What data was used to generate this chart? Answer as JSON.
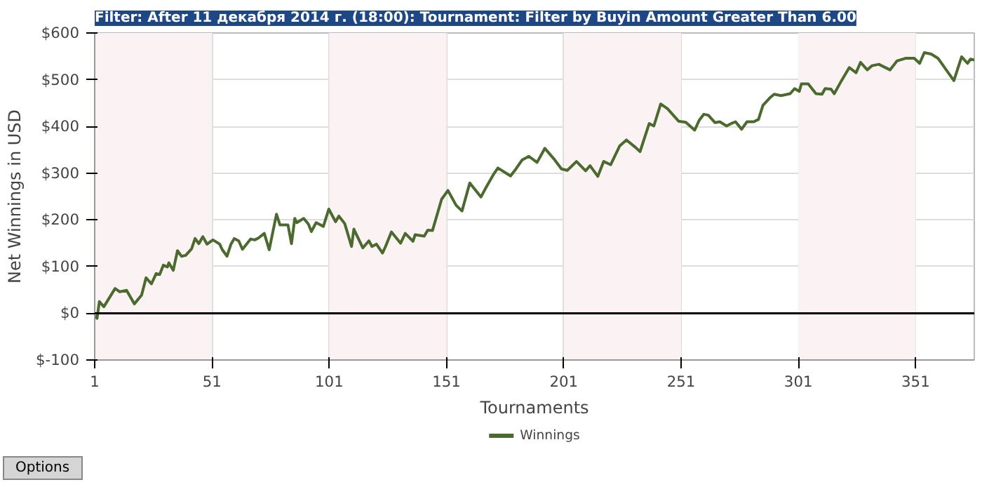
{
  "chart_data": {
    "type": "line",
    "title": "Filter: After 11 декабря 2014 г. (18:00): Tournament: Filter by Buyin Amount Greater Than 6.00",
    "xlabel": "Tournaments",
    "ylabel": "Net Winnings in USD",
    "xlim": [
      1,
      376
    ],
    "xticks": [
      1,
      51,
      101,
      151,
      201,
      251,
      301,
      351
    ],
    "ylim": [
      -100,
      600
    ],
    "yticks": [
      {
        "value": -100,
        "label": "$-100"
      },
      {
        "value": 0,
        "label": "$0"
      },
      {
        "value": 100,
        "label": "$100"
      },
      {
        "value": 200,
        "label": "$200"
      },
      {
        "value": 300,
        "label": "$300"
      },
      {
        "value": 400,
        "label": "$400"
      },
      {
        "value": 500,
        "label": "$500"
      },
      {
        "value": 600,
        "label": "$600"
      }
    ],
    "grid": true,
    "legend": "bottom",
    "ref_lines": [
      {
        "axis": "y",
        "value": 0,
        "color": "#000000"
      }
    ],
    "bands": [
      {
        "axis": "x",
        "from": 1,
        "to": 51,
        "color": "#fbf3f3"
      },
      {
        "axis": "x",
        "from": 101,
        "to": 151,
        "color": "#fbf3f3"
      },
      {
        "axis": "x",
        "from": 201,
        "to": 251,
        "color": "#fbf3f3"
      },
      {
        "axis": "x",
        "from": 301,
        "to": 351,
        "color": "#fbf3f3"
      }
    ],
    "annotations": [
      "Options"
    ],
    "series": [
      {
        "name": "Winnings",
        "color": "#4a6a2e",
        "x": [
          1,
          2,
          3,
          4.9,
          9.7,
          11.7,
          14.6,
          17.9,
          21,
          22.9,
          25.2,
          27.2,
          28.7,
          30.3,
          32,
          32.6,
          34.5,
          36.3,
          38,
          39.8,
          42.3,
          43.8,
          45.4,
          47.1,
          48.9,
          51.4,
          54.3,
          55.3,
          57.4,
          59.1,
          60.5,
          62.4,
          64,
          67.5,
          69.2,
          70.8,
          73.3,
          75.4,
          78.5,
          80,
          83.4,
          84.9,
          86.3,
          87.2,
          90.1,
          92.1,
          93.4,
          95.4,
          98.5,
          100.8,
          103.7,
          105.1,
          107.6,
          110.5,
          111.5,
          115.3,
          117.9,
          119.2,
          121.1,
          123.7,
          125,
          127.5,
          131.4,
          133.4,
          136.7,
          137.6,
          141.5,
          143,
          145,
          148.9,
          151.6,
          155.1,
          157.6,
          160.9,
          165.7,
          167.7,
          171,
          172.9,
          178.3,
          180.6,
          183.2,
          186.1,
          189.6,
          192.9,
          196.7,
          200,
          202.5,
          206.4,
          210.3,
          212.2,
          215.5,
          218,
          221,
          224.8,
          227.7,
          231.6,
          233.5,
          237.4,
          239.4,
          242.3,
          245.2,
          250,
          253,
          256.8,
          258.7,
          260.7,
          262.6,
          265.5,
          267.5,
          270.4,
          272.3,
          274.2,
          276.8,
          279.1,
          282,
          284,
          285.9,
          288.8,
          290.7,
          293.6,
          297.5,
          299.4,
          301.4,
          302.3,
          305.2,
          308.5,
          311.1,
          312.4,
          314.9,
          316.3,
          319.4,
          322.7,
          325.6,
          327.5,
          330.4,
          332.4,
          335.3,
          340.1,
          343,
          346.9,
          350.4,
          352.7,
          354.7,
          357.6,
          360.5,
          367.3,
          370.6,
          373.1,
          374.4,
          376
        ],
        "values": [
          -5,
          -11,
          25,
          14,
          53,
          46,
          49,
          20,
          39,
          76,
          63,
          85,
          83,
          103,
          99,
          108,
          92,
          134,
          122,
          124,
          138,
          160,
          149,
          164,
          148,
          157,
          148,
          137,
          122,
          148,
          160,
          155,
          137,
          159,
          157,
          161,
          171,
          136,
          212,
          189,
          189,
          149,
          203,
          194,
          203,
          191,
          175,
          194,
          186,
          223,
          196,
          208,
          192,
          143,
          180,
          140,
          155,
          143,
          148,
          129,
          143,
          174,
          150,
          171,
          154,
          168,
          165,
          178,
          177,
          244,
          263,
          231,
          219,
          279,
          249,
          268,
          297,
          311,
          294,
          309,
          328,
          336,
          323,
          353,
          331,
          309,
          306,
          325,
          305,
          316,
          293,
          325,
          318,
          358,
          371,
          355,
          346,
          406,
          401,
          448,
          438,
          411,
          409,
          392,
          413,
          426,
          424,
          408,
          410,
          401,
          406,
          410,
          394,
          410,
          410,
          415,
          445,
          461,
          469,
          466,
          470,
          481,
          475,
          491,
          491,
          470,
          469,
          481,
          480,
          470,
          498,
          526,
          515,
          537,
          521,
          530,
          533,
          521,
          540,
          546,
          546,
          535,
          558,
          555,
          546,
          498,
          549,
          535,
          544,
          542
        ]
      }
    ]
  }
}
